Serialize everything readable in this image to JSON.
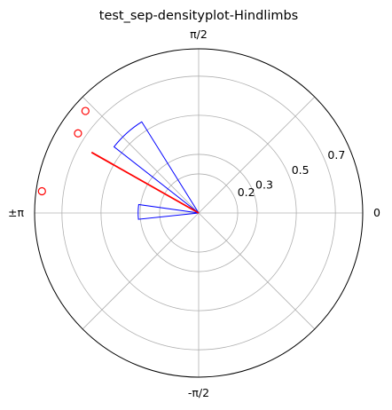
{
  "chart_data": {
    "type": "polar",
    "title": "test_sep-densityplot-Hindlimbs",
    "angular_ticks": [
      {
        "label": "0",
        "angle_deg": 0
      },
      {
        "label": "π/2",
        "angle_deg": 90
      },
      {
        "label": "±π",
        "angle_deg": 180
      },
      {
        "label": "-π/2",
        "angle_deg": 270
      }
    ],
    "radial_ticks": [
      {
        "label": "0.2",
        "r": 0.2
      },
      {
        "label": "0.3",
        "r": 0.3
      },
      {
        "label": "0.5",
        "r": 0.5
      },
      {
        "label": "0.7",
        "r": 0.7
      }
    ],
    "rlim": [
      0,
      0.84
    ],
    "radial_label_angle_deg": 22.5,
    "grid": true,
    "colors": {
      "bars": "#0000ff",
      "mean_line": "#ff0000",
      "points": "#ff0000",
      "grid": "#b0b0b0"
    },
    "density_bars": [
      {
        "theta_start_deg": 122,
        "theta_end_deg": 142,
        "r": 0.55
      },
      {
        "theta_start_deg": 172,
        "theta_end_deg": 186,
        "r": 0.31
      }
    ],
    "mean_direction": {
      "theta_deg": 150.5,
      "r": 0.63
    },
    "data_points": [
      {
        "theta_deg": 138,
        "r": 0.78
      },
      {
        "theta_deg": 146.6,
        "r": 0.74
      },
      {
        "theta_deg": 172.1,
        "r": 0.81
      }
    ]
  }
}
